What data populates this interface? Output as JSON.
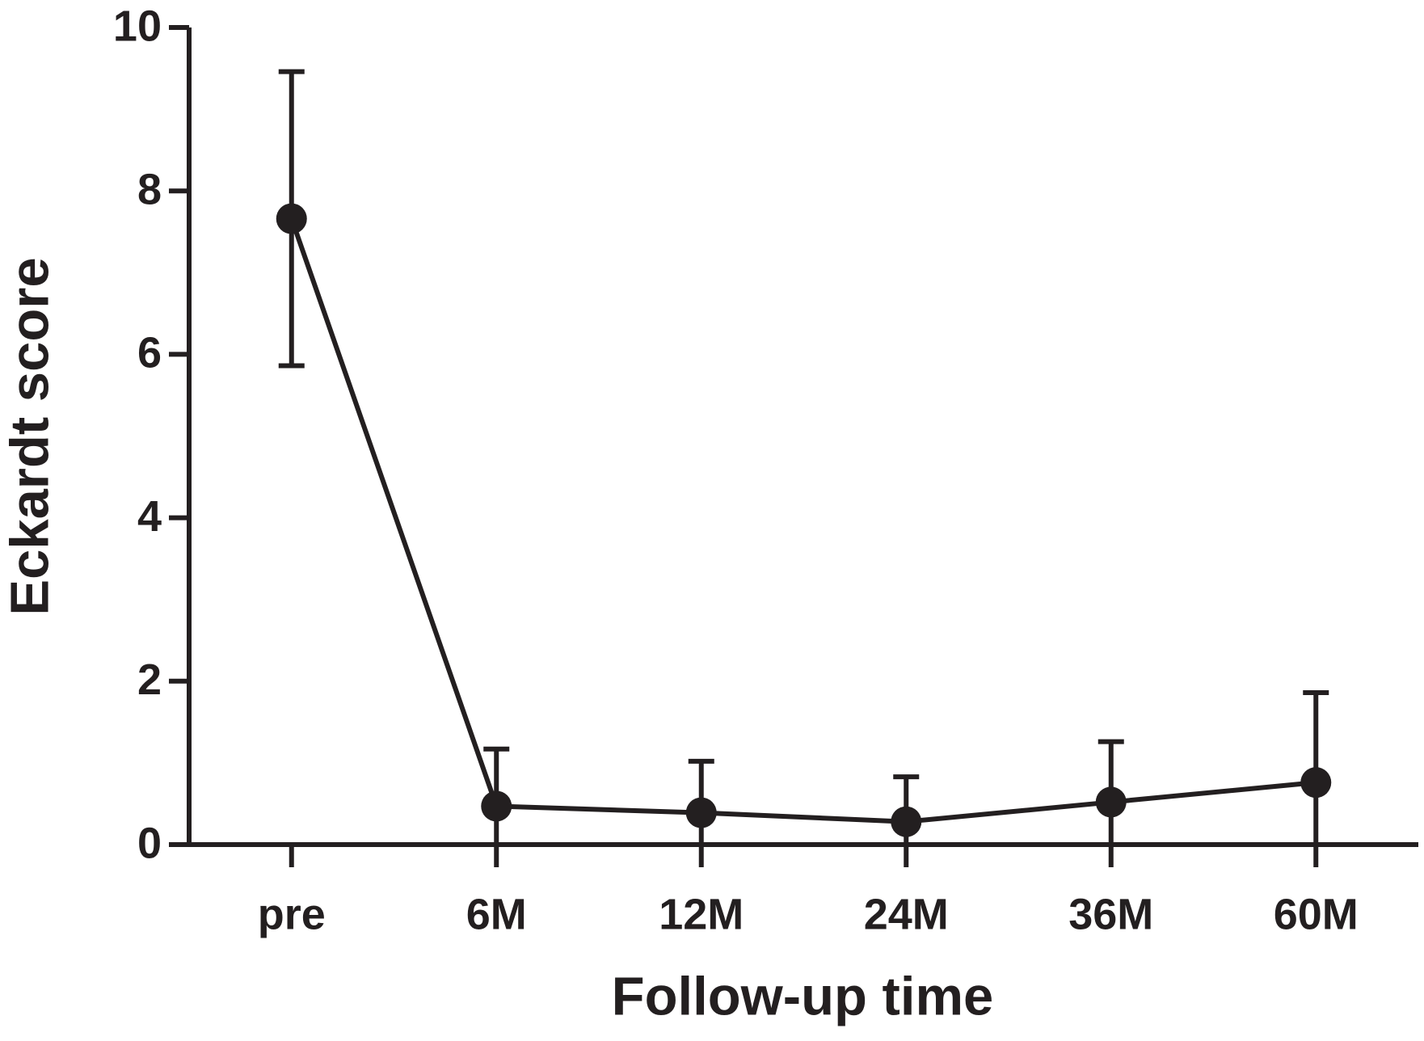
{
  "chart_data": {
    "type": "line",
    "x_label": "Follow-up time",
    "y_label": "Eckardt score",
    "categories": [
      "pre",
      "6M",
      "12M",
      "24M",
      "36M",
      "60M"
    ],
    "values": [
      7.66,
      0.47,
      0.39,
      0.28,
      0.52,
      0.76
    ],
    "errors": [
      1.8,
      0.7,
      0.63,
      0.55,
      0.74,
      1.1
    ],
    "color": "#231f20",
    "ylim": [
      0,
      10
    ],
    "yticks": [
      0,
      2,
      4,
      6,
      8,
      10
    ],
    "grid": false
  }
}
